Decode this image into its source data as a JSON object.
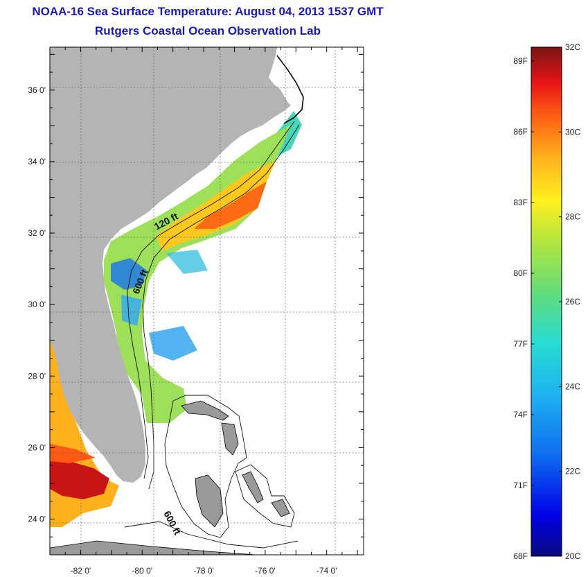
{
  "header": {
    "title": "NOAA-16 Sea Surface Temperature:  August 04, 2013 1537 GMT",
    "subtitle": "Rutgers Coastal Ocean Observation Lab"
  },
  "map": {
    "lat_ticks": [
      {
        "label": "36 0'",
        "lat": 36
      },
      {
        "label": "34 0'",
        "lat": 34
      },
      {
        "label": "32 0'",
        "lat": 32
      },
      {
        "label": "30 0'",
        "lat": 30
      },
      {
        "label": "28 0'",
        "lat": 28
      },
      {
        "label": "26 0'",
        "lat": 26
      },
      {
        "label": "24 0'",
        "lat": 24
      }
    ],
    "lon_ticks": [
      {
        "label": "-82 0'",
        "lon": -82
      },
      {
        "label": "-80 0'",
        "lon": -80
      },
      {
        "label": "-78 0'",
        "lon": -78
      },
      {
        "label": "-76 0'",
        "lon": -76
      },
      {
        "label": "-74 0'",
        "lon": -74
      }
    ],
    "lat_range": [
      23,
      37.2
    ],
    "lon_range": [
      -83,
      -72.8
    ],
    "isobath_labels": {
      "shelf_120": "120 ft",
      "shelf_600": "600 ft",
      "bahamas_600": "600 ft"
    },
    "colors": {
      "land": "#b4b4b4",
      "grid": "#555555"
    }
  },
  "colorbar": {
    "fahrenheit_labels": [
      "89F",
      "86F",
      "83F",
      "80F",
      "77F",
      "74F",
      "71F",
      "68F"
    ],
    "celsius_labels": [
      "32C",
      "30C",
      "28C",
      "26C",
      "24C",
      "22C",
      "20C"
    ],
    "range_c": [
      20,
      32
    ]
  }
}
